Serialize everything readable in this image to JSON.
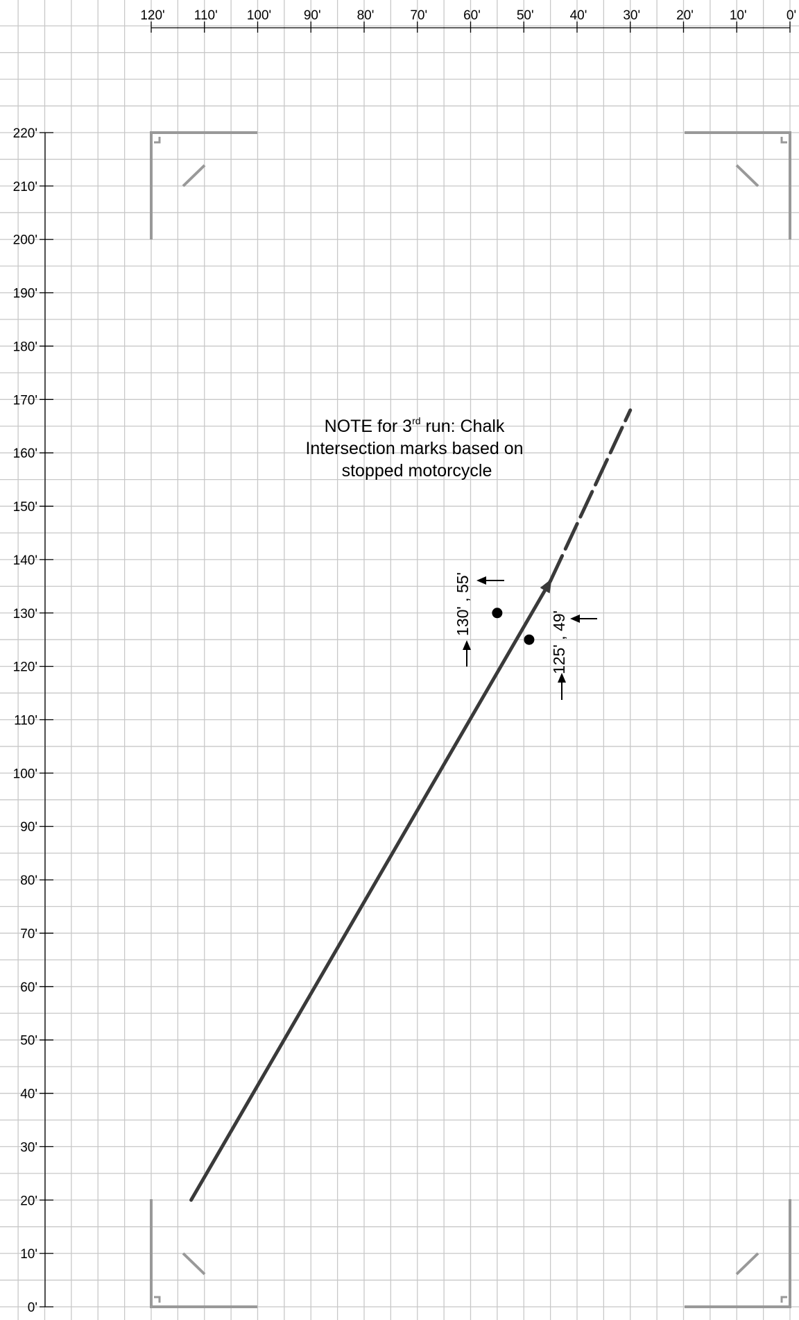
{
  "x_axis": {
    "labels": [
      "120'",
      "110'",
      "100'",
      "90'",
      "80'",
      "70'",
      "60'",
      "50'",
      "40'",
      "30'",
      "20'",
      "10'",
      "0'"
    ],
    "unit": "feet"
  },
  "y_axis": {
    "labels": [
      "220'",
      "210'",
      "200'",
      "190'",
      "180'",
      "170'",
      "160'",
      "150'",
      "140'",
      "130'",
      "120'",
      "110'",
      "100'",
      "90'",
      "80'",
      "70'",
      "60'",
      "50'",
      "40'",
      "30'",
      "20'",
      "10'",
      "0'"
    ],
    "unit": "feet"
  },
  "note": {
    "line1_before": "NOTE for 3",
    "line1_sup": "rd",
    "line1_after": " run: Chalk",
    "line2": "Intersection marks based on",
    "line3": "stopped motorcycle"
  },
  "path": {
    "solid_start": {
      "x_ft": 112.5,
      "y_ft": 20
    },
    "solid_end": {
      "x_ft": 45,
      "y_ft": 136
    },
    "dashed_end": {
      "x_ft": 30,
      "y_ft": 168
    },
    "direction": "toward upper-right"
  },
  "points": [
    {
      "label": "130' , 55'",
      "y_ft": 130,
      "x_ft": 55
    },
    {
      "label": "125' , 49'",
      "y_ft": 125,
      "x_ft": 49
    }
  ],
  "corner_markers": [
    "top-left",
    "top-right",
    "bottom-left",
    "bottom-right"
  ],
  "colors": {
    "grid": "#c8c8c8",
    "marker": "#999999",
    "path": "#3a3a3a",
    "axis": "#000000"
  }
}
